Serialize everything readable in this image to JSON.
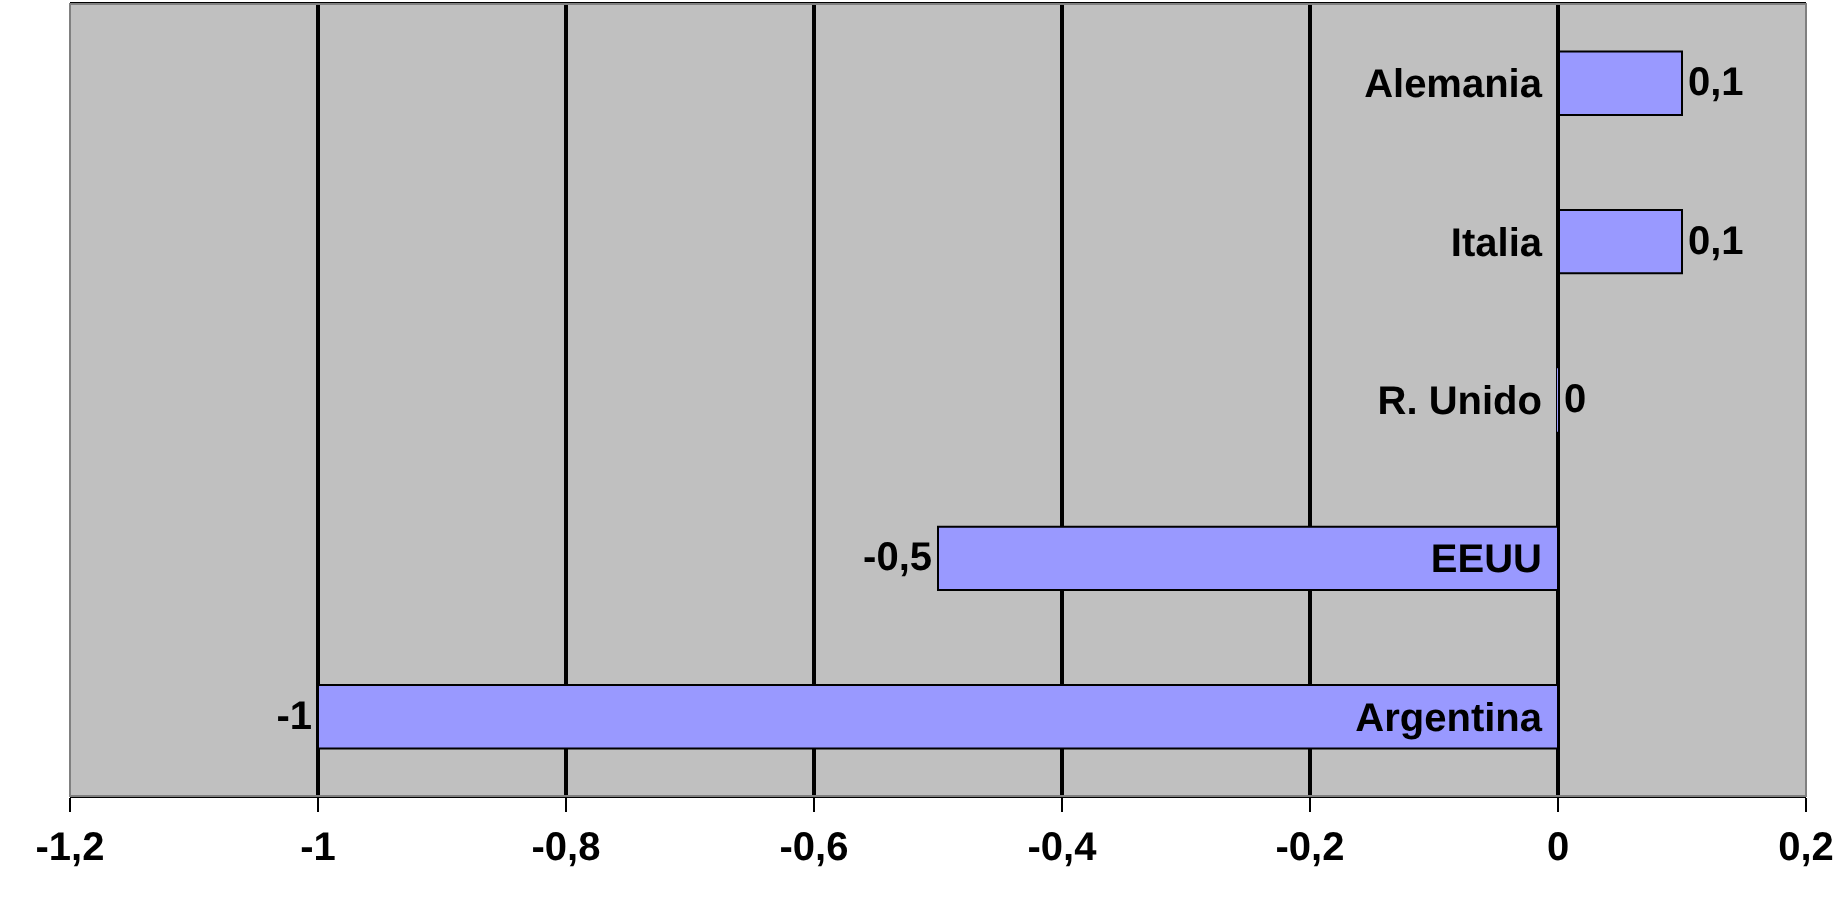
{
  "chart_data": {
    "type": "bar",
    "orientation": "horizontal",
    "categories": [
      "Alemania",
      "Italia",
      "R. Unido",
      "EEUU",
      "Argentina"
    ],
    "values": [
      0.1,
      0.1,
      0,
      -0.5,
      -1
    ],
    "value_labels": [
      "0,1",
      "0,1",
      "0",
      "-0,5",
      "-1"
    ],
    "color": "#9999ff",
    "xlim": [
      -1.2,
      0.2
    ],
    "xticks": [
      {
        "value": -1.2,
        "label": "-1,2"
      },
      {
        "value": -1,
        "label": "-1"
      },
      {
        "value": -0.8,
        "label": "-0,8"
      },
      {
        "value": -0.6,
        "label": "-0,6"
      },
      {
        "value": -0.4,
        "label": "-0,4"
      },
      {
        "value": -0.2,
        "label": "-0,2"
      },
      {
        "value": 0,
        "label": "0"
      },
      {
        "value": 0.2,
        "label": "0,2"
      }
    ],
    "grid": "x",
    "legend": false
  }
}
